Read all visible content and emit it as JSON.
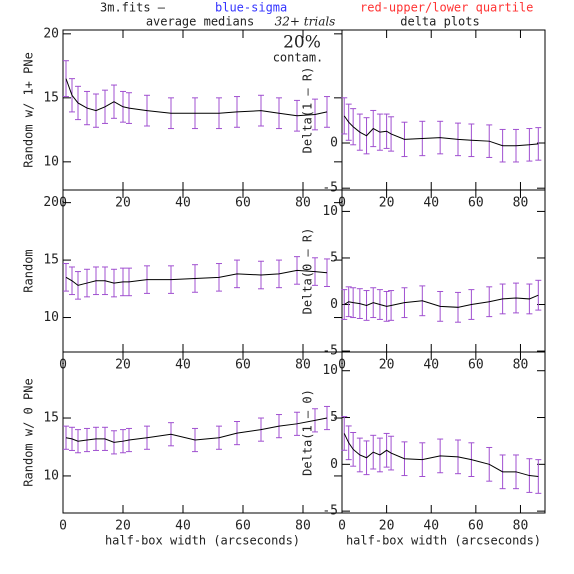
{
  "header": {
    "file": "3m.fits  –",
    "sigma": "blue-sigma",
    "quartile": "red-upper/lower quartile",
    "left_title": "average medians",
    "trials": "32+ trials",
    "right_title": "delta plots",
    "contam_value": "20%",
    "contam_label": "contam."
  },
  "chart_data": [
    {
      "type": "line",
      "y_label": "Random w/ 1+ PNe",
      "color": "#000000",
      "error_color": "#a050d0",
      "x": [
        1,
        3,
        5,
        8,
        11,
        14,
        17,
        20,
        22,
        28,
        36,
        44,
        52,
        58,
        66,
        72,
        78,
        84,
        88
      ],
      "values": [
        16.5,
        15.2,
        14.6,
        14.2,
        14.0,
        14.3,
        14.7,
        14.3,
        14.2,
        14.0,
        13.8,
        13.8,
        13.8,
        13.9,
        14.0,
        13.8,
        13.6,
        13.7,
        13.9
      ],
      "errors": [
        1.4,
        1.3,
        1.3,
        1.3,
        1.3,
        1.3,
        1.3,
        1.2,
        1.2,
        1.2,
        1.2,
        1.2,
        1.2,
        1.2,
        1.2,
        1.2,
        1.2,
        1.2,
        1.2
      ],
      "xlim": [
        0,
        93
      ],
      "ylim": [
        7.8,
        20.3
      ],
      "xticks": [
        0,
        20,
        40,
        60,
        80
      ],
      "yticks": [
        10,
        15,
        20
      ]
    },
    {
      "type": "line",
      "y_label": "Delta(1 – R)",
      "color": "#000000",
      "error_color": "#a050d0",
      "x": [
        1,
        3,
        5,
        8,
        11,
        14,
        17,
        20,
        22,
        28,
        36,
        44,
        52,
        58,
        66,
        72,
        78,
        84,
        88
      ],
      "values": [
        3.0,
        2.3,
        1.8,
        1.2,
        0.8,
        1.6,
        1.2,
        1.3,
        1.0,
        0.4,
        0.5,
        0.6,
        0.4,
        0.3,
        0.2,
        -0.3,
        -0.3,
        -0.2,
        -0.1
      ],
      "errors": [
        2.0,
        2.0,
        2.0,
        2.0,
        2.0,
        2.0,
        2.0,
        1.9,
        1.9,
        1.9,
        1.9,
        1.8,
        1.8,
        1.8,
        1.8,
        1.8,
        1.8,
        1.8,
        1.8
      ],
      "xlim": [
        0,
        91
      ],
      "ylim": [
        -5.2,
        12.5
      ],
      "xticks": [
        0,
        20,
        40,
        60,
        80
      ],
      "yticks": [
        -5,
        0
      ]
    },
    {
      "type": "line",
      "y_label": "Random",
      "color": "#000000",
      "error_color": "#a050d0",
      "x": [
        1,
        3,
        5,
        8,
        11,
        14,
        17,
        20,
        22,
        28,
        36,
        44,
        52,
        58,
        66,
        72,
        78,
        84,
        88
      ],
      "values": [
        13.5,
        13.2,
        12.8,
        13.0,
        13.2,
        13.2,
        13.0,
        13.1,
        13.1,
        13.3,
        13.3,
        13.4,
        13.5,
        13.8,
        13.7,
        13.8,
        14.1,
        14.0,
        13.9
      ],
      "errors": [
        1.2,
        1.2,
        1.2,
        1.2,
        1.2,
        1.2,
        1.2,
        1.2,
        1.2,
        1.2,
        1.2,
        1.2,
        1.2,
        1.2,
        1.2,
        1.2,
        1.2,
        1.2,
        1.2
      ],
      "xlim": [
        0,
        93
      ],
      "ylim": [
        7.0,
        21.1
      ],
      "xticks": [
        0,
        20,
        40,
        60,
        80
      ],
      "yticks": [
        10,
        15,
        20
      ]
    },
    {
      "type": "line",
      "y_label": "Delta(0 – R)",
      "color": "#000000",
      "error_color": "#a050d0",
      "x": [
        1,
        3,
        5,
        8,
        11,
        14,
        17,
        20,
        22,
        28,
        36,
        44,
        52,
        58,
        66,
        72,
        78,
        84,
        88
      ],
      "values": [
        0.0,
        0.3,
        0.2,
        0.1,
        -0.1,
        0.2,
        0.0,
        -0.2,
        -0.1,
        0.2,
        0.4,
        -0.2,
        -0.3,
        0.0,
        0.3,
        0.6,
        0.7,
        0.6,
        1.0
      ],
      "errors": [
        1.6,
        1.6,
        1.6,
        1.6,
        1.6,
        1.6,
        1.6,
        1.6,
        1.6,
        1.6,
        1.6,
        1.6,
        1.6,
        1.6,
        1.6,
        1.6,
        1.6,
        1.6,
        1.6
      ],
      "xlim": [
        0,
        91
      ],
      "ylim": [
        -5.1,
        12.3
      ],
      "xticks": [
        0,
        20,
        40,
        60,
        80
      ],
      "yticks": [
        -5,
        0,
        5,
        10
      ]
    },
    {
      "type": "line",
      "y_label": "Random w/ 0 PNe",
      "x_label": "half-box width (arcseconds)",
      "color": "#000000",
      "error_color": "#a050d0",
      "x": [
        1,
        3,
        5,
        8,
        11,
        14,
        17,
        20,
        22,
        28,
        36,
        44,
        52,
        58,
        66,
        72,
        78,
        84,
        88
      ],
      "values": [
        13.3,
        13.2,
        13.0,
        13.1,
        13.2,
        13.2,
        12.9,
        13.0,
        13.1,
        13.3,
        13.6,
        13.1,
        13.3,
        13.7,
        14.0,
        14.3,
        14.5,
        14.8,
        15.0
      ],
      "errors": [
        1.0,
        1.0,
        1.0,
        1.0,
        1.0,
        1.0,
        1.0,
        1.0,
        1.0,
        1.0,
        1.0,
        1.0,
        1.0,
        1.0,
        1.0,
        1.0,
        1.0,
        1.0,
        1.0
      ],
      "xlim": [
        0,
        93
      ],
      "ylim": [
        6.8,
        20.7
      ],
      "xticks": [
        0,
        20,
        40,
        60,
        80
      ],
      "yticks": [
        10,
        15
      ]
    },
    {
      "type": "line",
      "y_label": "Delta(1 – 0)",
      "x_label": "half-box width (arcseconds)",
      "color": "#000000",
      "error_color": "#a050d0",
      "x": [
        1,
        3,
        5,
        8,
        11,
        14,
        17,
        20,
        22,
        28,
        36,
        44,
        52,
        58,
        66,
        72,
        78,
        84,
        88
      ],
      "values": [
        3.3,
        2.3,
        1.6,
        1.0,
        0.7,
        1.3,
        1.0,
        1.5,
        1.2,
        0.6,
        0.5,
        0.9,
        0.8,
        0.5,
        0.0,
        -0.8,
        -0.8,
        -1.2,
        -1.3
      ],
      "errors": [
        1.8,
        1.8,
        1.8,
        1.8,
        1.8,
        1.8,
        1.8,
        1.8,
        1.8,
        1.8,
        1.8,
        1.8,
        1.8,
        1.8,
        1.8,
        1.8,
        1.8,
        1.8,
        1.8
      ],
      "xlim": [
        0,
        91
      ],
      "ylim": [
        -5.2,
        12.0
      ],
      "xticks": [
        0,
        20,
        40,
        60,
        80
      ],
      "yticks": [
        -5,
        0,
        5,
        10
      ]
    }
  ]
}
